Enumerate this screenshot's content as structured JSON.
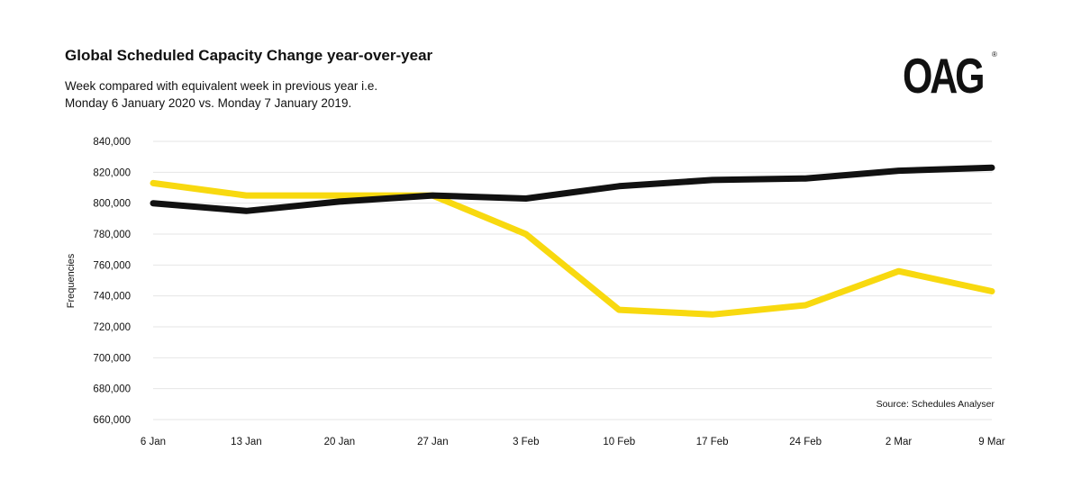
{
  "title": "Global Scheduled Capacity Change year-over-year",
  "subtitle_lines": [
    "Week compared with equivalent week in previous year i.e.",
    "Monday 6 January 2020 vs. Monday 7 January 2019."
  ],
  "logo_text": "OAG",
  "logo_registered": "®",
  "source_note": "Source: Schedules Analyser",
  "chart_data": {
    "type": "line",
    "categories": [
      "6 Jan",
      "13 Jan",
      "20 Jan",
      "27 Jan",
      "3 Feb",
      "10 Feb",
      "17 Feb",
      "24 Feb",
      "2 Mar",
      "9 Mar"
    ],
    "ylabel": "Frequencies",
    "ylim": [
      660000,
      840000
    ],
    "yticks": [
      660000,
      680000,
      700000,
      720000,
      740000,
      760000,
      780000,
      800000,
      820000,
      840000
    ],
    "ytick_labels": [
      "660,000",
      "680,000",
      "700,000",
      "720,000",
      "740,000",
      "760,000",
      "780,000",
      "800,000",
      "820,000",
      "840,000"
    ],
    "grid": true,
    "series": [
      {
        "color": "#111111",
        "values": [
          800000,
          795000,
          801000,
          805000,
          803000,
          811000,
          815000,
          816000,
          821000,
          823000
        ]
      },
      {
        "color": "#f8d90f",
        "values": [
          813000,
          805000,
          805000,
          805000,
          780000,
          731000,
          728000,
          734000,
          756000,
          743000
        ]
      }
    ]
  }
}
